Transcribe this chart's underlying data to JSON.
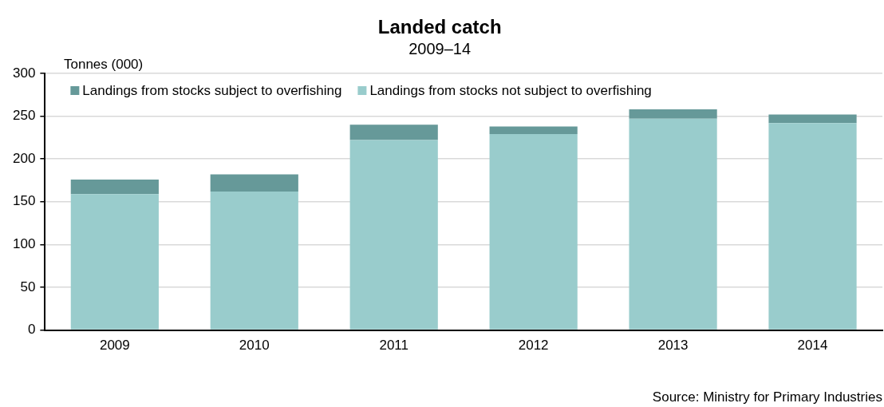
{
  "chart_data": {
    "type": "bar",
    "title": "Landed catch",
    "subtitle": "2009–14",
    "ylabel": "Tonnes (000)",
    "categories": [
      "2009",
      "2010",
      "2011",
      "2012",
      "2013",
      "2014"
    ],
    "series": [
      {
        "name": "Landings from stocks not subject to overfishing",
        "color": "#99cccc",
        "values": [
          159,
          162,
          222,
          229,
          247,
          242
        ]
      },
      {
        "name": "Landings from stocks subject to overfishing",
        "color": "#669999",
        "values": [
          17,
          20,
          18,
          9,
          11,
          10
        ]
      }
    ],
    "stacked": true,
    "ylim": [
      0,
      300
    ],
    "yticks": [
      0,
      50,
      100,
      150,
      200,
      250,
      300
    ],
    "grid": "y",
    "legend": "top left",
    "annotations": [
      "Source: Ministry for Primary Industries"
    ]
  }
}
